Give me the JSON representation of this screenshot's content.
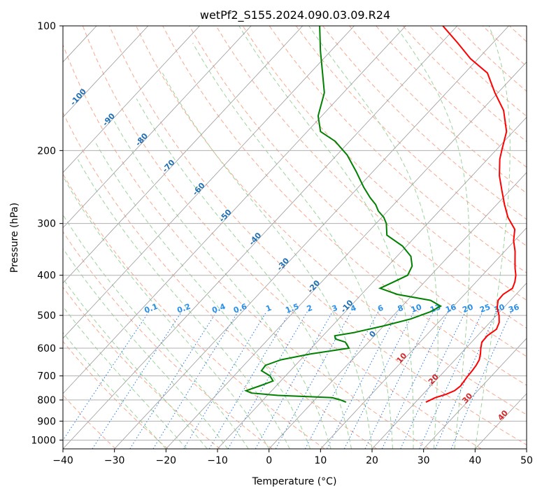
{
  "chart_data": {
    "type": "line",
    "title": "wetPf2_S155.2024.090.03.09.R24",
    "xlabel": "Temperature (°C)",
    "ylabel": "Pressure (hPa)",
    "xlim": [
      -40,
      50
    ],
    "ylim": [
      1050,
      100
    ],
    "y_scale": "log",
    "grid": true,
    "x_ticks": [
      -40,
      -30,
      -20,
      -10,
      0,
      10,
      20,
      30,
      40,
      50
    ],
    "y_ticks": [
      100,
      200,
      300,
      400,
      500,
      600,
      700,
      800,
      900,
      1000
    ],
    "isotherm_labels": [
      "-100",
      "-90",
      "-80",
      "-70",
      "-60",
      "-50",
      "-40",
      "-30",
      "-20",
      "-10",
      "0",
      "10",
      "20",
      "30",
      "40"
    ],
    "mixing_ratio_labels": [
      "0.1",
      "0.2",
      "0.4",
      "0.6",
      "1",
      "1.5",
      "2",
      "3",
      "4",
      "6",
      "8",
      "10",
      "13",
      "16",
      "20",
      "25",
      "30",
      "36"
    ],
    "series": [
      {
        "color": "#ff0000",
        "pressure": [
          810,
          790,
          775,
          760,
          740,
          720,
          700,
          680,
          660,
          640,
          620,
          600,
          580,
          560,
          540,
          520,
          500,
          480,
          460,
          445,
          430,
          415,
          400,
          385,
          370,
          350,
          330,
          310,
          290,
          270,
          250,
          230,
          210,
          200,
          180,
          160,
          145,
          130,
          120,
          110,
          100
        ],
        "values": [
          22,
          23,
          24.5,
          25.5,
          25.8,
          25.6,
          25.4,
          25.3,
          25.1,
          24.7,
          23.9,
          22.9,
          22,
          21.9,
          22.5,
          21.8,
          20.5,
          18.8,
          17.6,
          17.5,
          18.2,
          17.5,
          16.5,
          15.1,
          13.8,
          12,
          9.8,
          8,
          4.5,
          1.5,
          -1.5,
          -4.7,
          -7.6,
          -8.8,
          -11.3,
          -15.7,
          -20.6,
          -25.6,
          -31.5,
          -36.8,
          -42.8
        ]
      },
      {
        "color": "#008000",
        "pressure": [
          810,
          800,
          790,
          785,
          780,
          770,
          760,
          740,
          720,
          700,
          680,
          660,
          640,
          620,
          600,
          580,
          570,
          560,
          550,
          530,
          510,
          490,
          475,
          460,
          445,
          430,
          415,
          400,
          380,
          360,
          340,
          320,
          300,
          290,
          280,
          270,
          260,
          245,
          225,
          205,
          190,
          180,
          165,
          145,
          130,
          115,
          100
        ],
        "values": [
          6.5,
          5,
          3,
          -2,
          -8,
          -13.5,
          -15,
          -13.2,
          -11.5,
          -13,
          -15.6,
          -15.8,
          -13.8,
          -9.2,
          -2.7,
          -4.5,
          -7,
          -7.7,
          -4.5,
          0,
          4,
          6.5,
          7.5,
          4.5,
          -3,
          -7.5,
          -6,
          -4.5,
          -5.3,
          -7.3,
          -10.8,
          -15.8,
          -18,
          -19.6,
          -21.8,
          -23.5,
          -25.8,
          -29,
          -33.2,
          -38,
          -42.8,
          -47.4,
          -50.7,
          -53.7,
          -57.6,
          -62,
          -66.7
        ]
      }
    ]
  }
}
